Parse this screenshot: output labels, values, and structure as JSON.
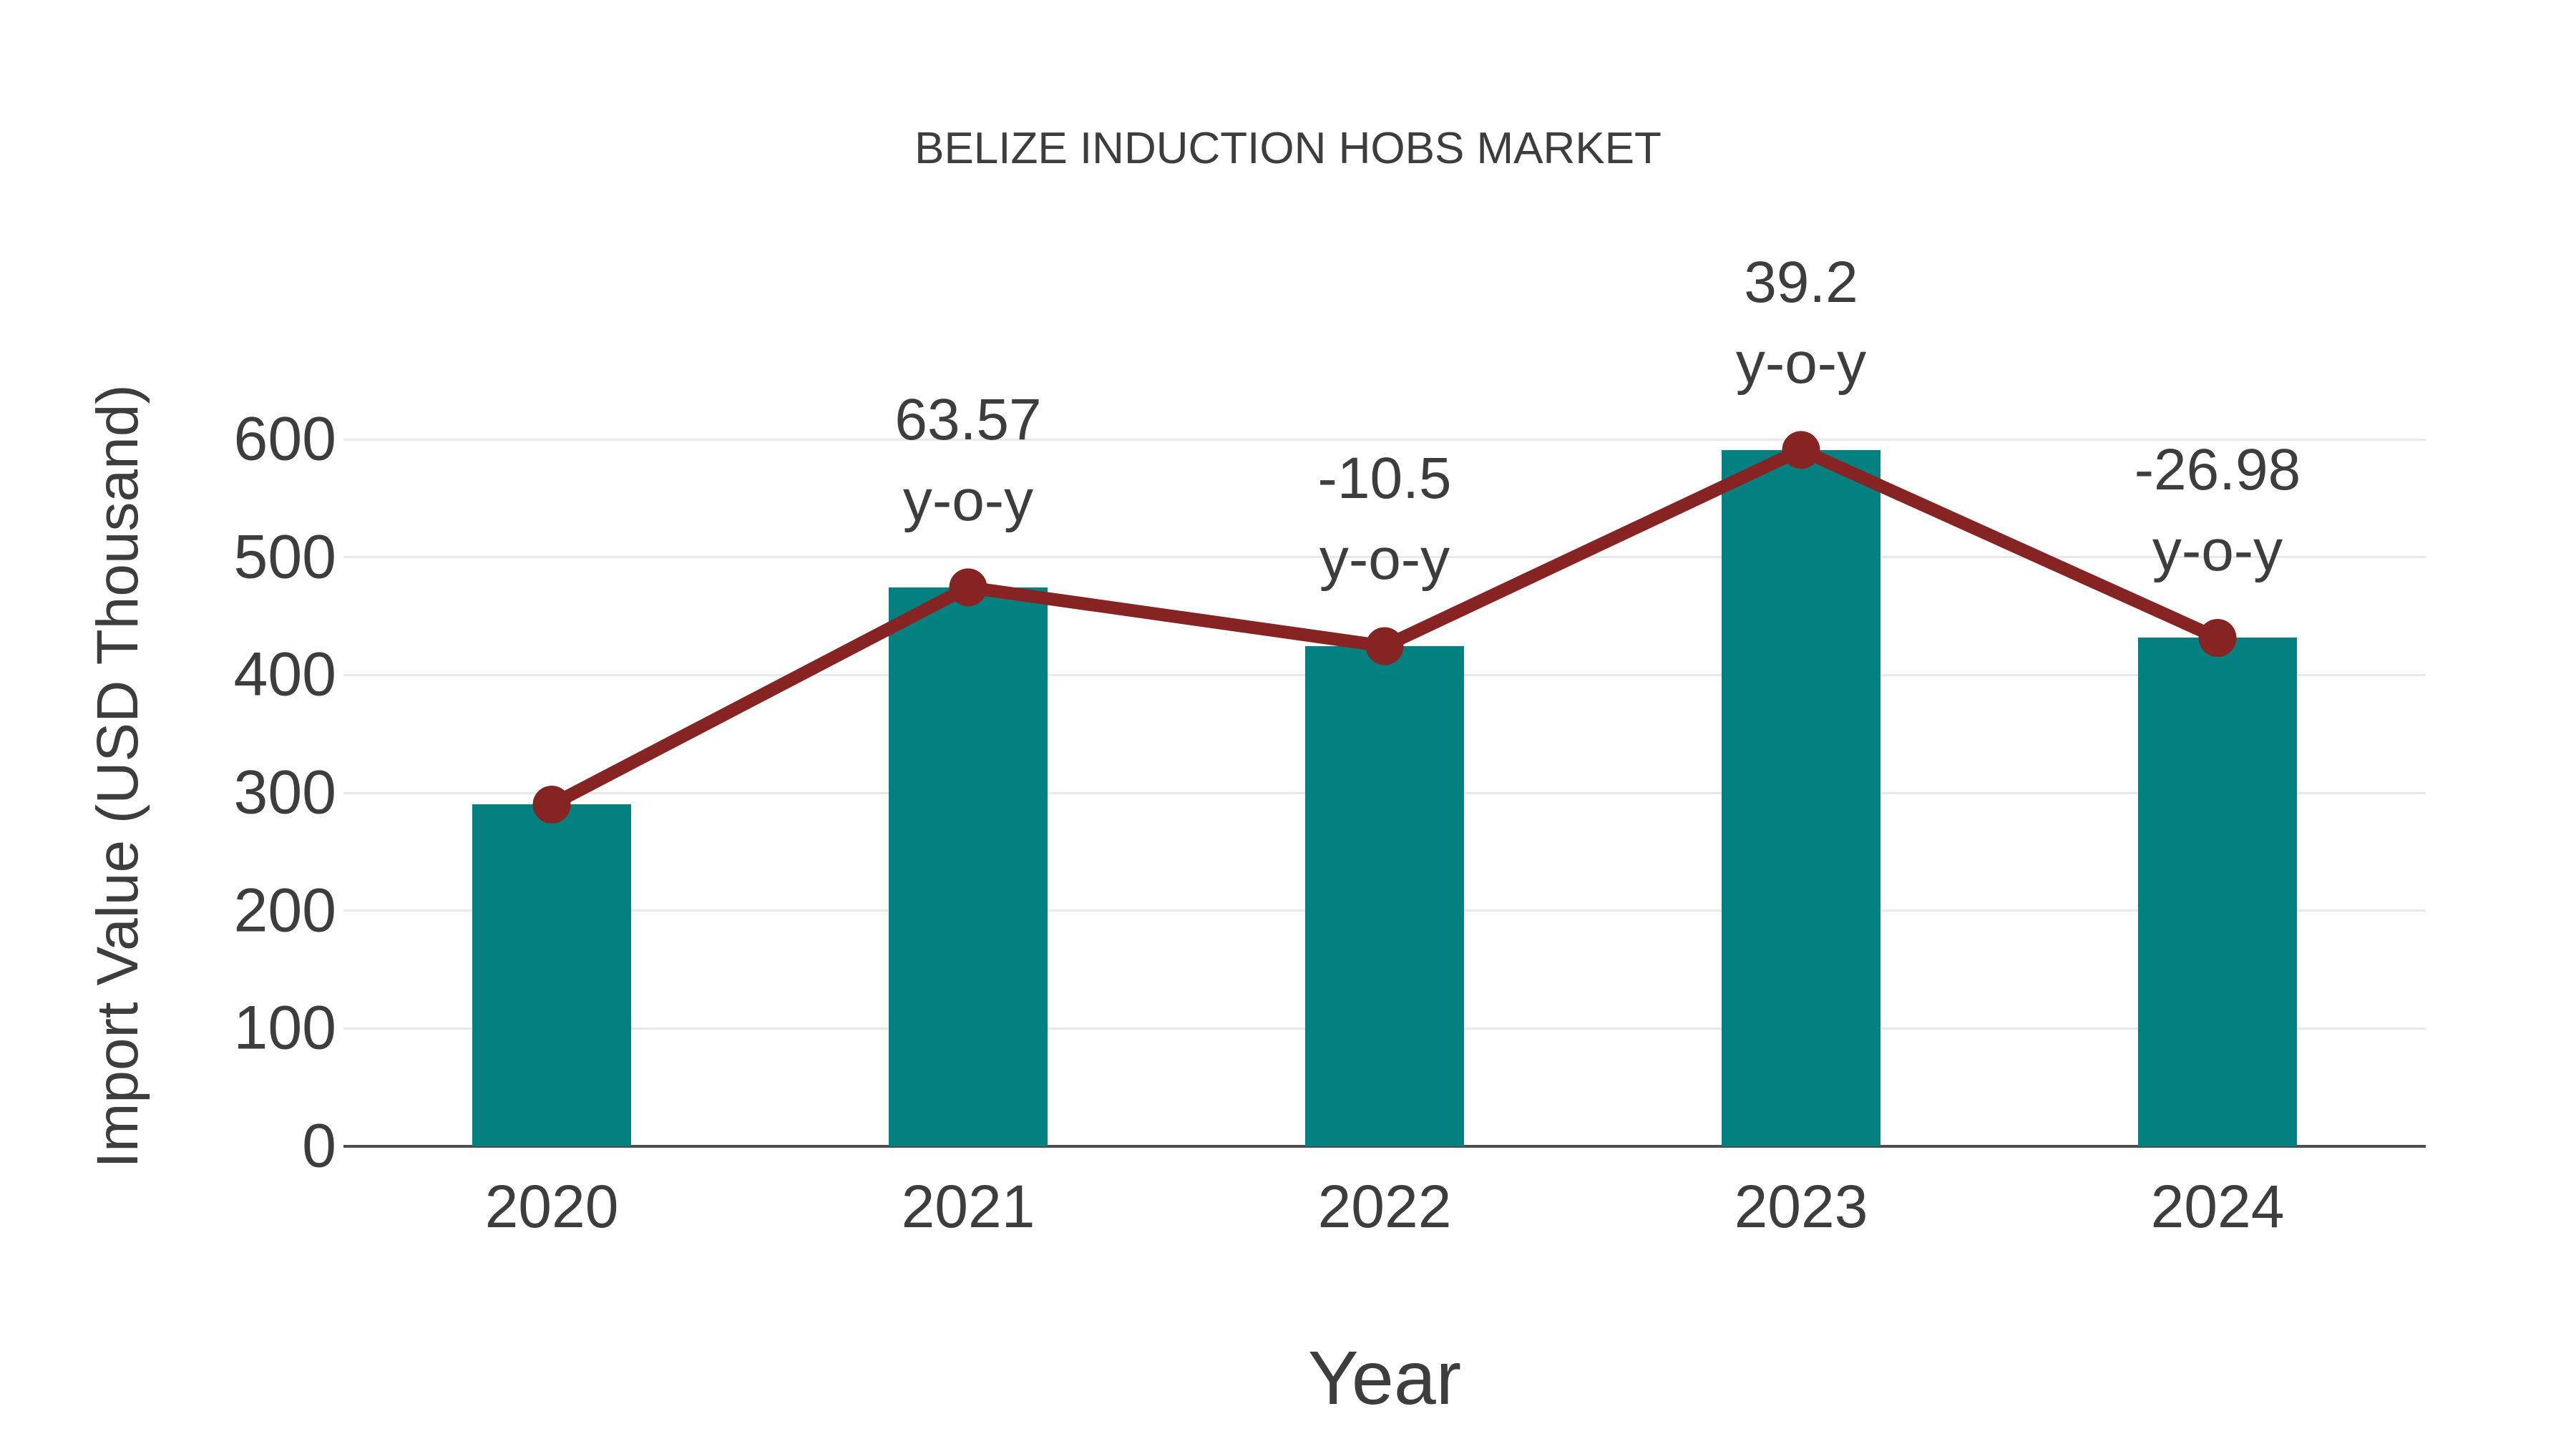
{
  "page": {
    "background": "#ffffff"
  },
  "chart_data": {
    "type": "bar",
    "title": "BELIZE INDUCTION HOBS MARKET",
    "xlabel": "Year",
    "ylabel": "Import Value (USD Thousand)",
    "categories": [
      "2020",
      "2021",
      "2022",
      "2023",
      "2024"
    ],
    "series": [
      {
        "name": "Import Value (USD Thousand)",
        "type": "bar",
        "color": "#038181",
        "values": [
          290,
          474.4,
          424.5,
          591,
          431.5
        ],
        "note": "bar heights estimated from gridlines"
      },
      {
        "name": "y-o-y (%)",
        "type": "line",
        "color": "#862424",
        "values": [
          null,
          63.57,
          -10.5,
          39.2,
          -26.98
        ],
        "plotted_at": "bar tops"
      }
    ],
    "annotations": [
      {
        "category": "2021",
        "lines": [
          "63.57",
          "y-o-y"
        ]
      },
      {
        "category": "2022",
        "lines": [
          "-10.5",
          "y-o-y"
        ]
      },
      {
        "category": "2023",
        "lines": [
          "39.2",
          "y-o-y"
        ]
      },
      {
        "category": "2024",
        "lines": [
          "-26.98",
          "y-o-y"
        ]
      }
    ],
    "ylim": [
      0,
      600
    ],
    "yticks": [
      0,
      100,
      200,
      300,
      400,
      500,
      600
    ],
    "grid": "horizontal",
    "legend": "none"
  },
  "colors": {
    "background": "#ffffff",
    "bar": "#038181",
    "line": "#862424",
    "text": "#3d3d3d",
    "grid": "#e9e9e9",
    "axis": "#4d4d4d"
  }
}
